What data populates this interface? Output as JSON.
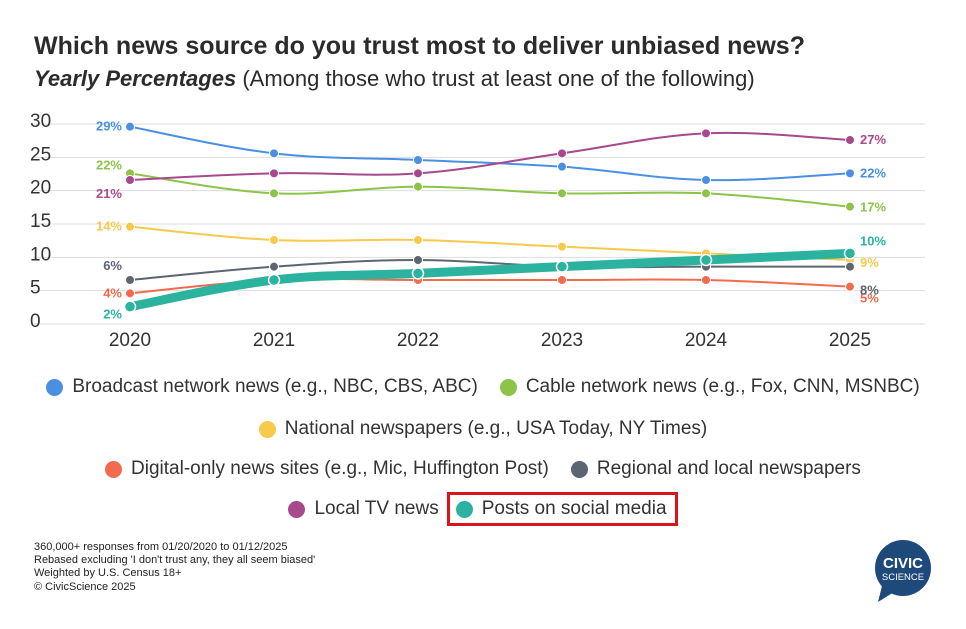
{
  "header": {
    "title": "Which news source do you trust most to deliver unbiased news?",
    "subtitle_emphasis": "Yearly Percentages",
    "subtitle_rest": " (Among those who trust at least one of the following)"
  },
  "chart_data": {
    "type": "line",
    "title": "Which news source do you trust most to deliver unbiased news?",
    "subtitle": "Yearly Percentages (Among those who trust at least one of the following)",
    "categories": [
      "2020",
      "2021",
      "2022",
      "2023",
      "2024",
      "2025"
    ],
    "y_ticks": [
      "0",
      "5",
      "10",
      "15",
      "20",
      "25",
      "30"
    ],
    "ylim": [
      0,
      30
    ],
    "xlabel": "",
    "ylabel": "",
    "grid": true,
    "series": [
      {
        "name": "Broadcast network news (e.g., NBC, CBS, ABC)",
        "color": "#4a90e2",
        "values": [
          29,
          25,
          24,
          23,
          21,
          22
        ],
        "label_first": "29%",
        "label_last": "22%"
      },
      {
        "name": "Cable network news (e.g., Fox, CNN, MSNBC)",
        "color": "#8cc44a",
        "values": [
          22,
          19,
          20,
          19,
          19,
          17
        ],
        "label_first": "22%",
        "label_last": "17%"
      },
      {
        "name": "National newspapers (e.g., USA Today, NY Times)",
        "color": "#f7ca4b",
        "values": [
          14,
          12,
          12,
          11,
          10,
          9
        ],
        "label_first": "14%",
        "label_last": "9%"
      },
      {
        "name": "Digital-only news sites (e.g., Mic, Huffington Post)",
        "color": "#f26b4f",
        "values": [
          4,
          6,
          6,
          6,
          6,
          5
        ],
        "label_first": "4%",
        "label_last": "5%"
      },
      {
        "name": "Regional and local newspapers",
        "color": "#5c6570",
        "values": [
          6,
          8,
          9,
          8,
          8,
          8
        ],
        "label_first": "6%",
        "label_last": "8%"
      },
      {
        "name": "Local TV news",
        "color": "#a8488d",
        "values": [
          21,
          22,
          22,
          25,
          28,
          27
        ],
        "label_first": "21%",
        "label_last": "27%"
      },
      {
        "name": "Posts on social media",
        "color": "#2bb3a0",
        "values": [
          2,
          6,
          7,
          8,
          9,
          10
        ],
        "label_first": "2%",
        "label_last": "10%",
        "highlighted": true
      }
    ]
  },
  "legend": [
    {
      "label": "Broadcast network news (e.g., NBC, CBS, ABC)",
      "color": "#4a90e2"
    },
    {
      "label": "Cable network news (e.g., Fox, CNN, MSNBC)",
      "color": "#8cc44a"
    },
    {
      "label": "National newspapers (e.g., USA Today, NY Times)",
      "color": "#f7ca4b"
    },
    {
      "label": "Digital-only news sites (e.g., Mic, Huffington Post)",
      "color": "#f26b4f"
    },
    {
      "label": "Regional and local newspapers",
      "color": "#5c6570"
    },
    {
      "label": "Local TV news",
      "color": "#a8488d"
    },
    {
      "label": "Posts on social media",
      "color": "#2bb3a0"
    }
  ],
  "footnotes": [
    "360,000+ responses from 01/20/2020 to 01/12/2025",
    "Rebased excluding 'I don't trust any, they all seem biased'",
    "Weighted by U.S. Census 18+",
    "© CivicScience 2025"
  ],
  "logo": {
    "line1": "CIVIC",
    "line2": "SCIENCE",
    "color": "#1d4a7a"
  }
}
